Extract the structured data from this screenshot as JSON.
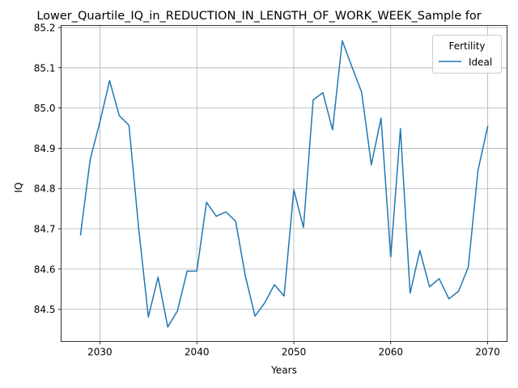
{
  "chart_data": {
    "type": "line",
    "title": "Lower_Quartile_IQ_in_REDUCTION_IN_LENGTH_OF_WORK_WEEK_Sample for",
    "xlabel": "Years",
    "ylabel": "IQ",
    "xlim": [
      2026,
      2072
    ],
    "ylim": [
      84.42,
      85.205
    ],
    "xticks": [
      2030,
      2040,
      2050,
      2060,
      2070
    ],
    "yticks": [
      84.5,
      84.6,
      84.7,
      84.8,
      84.9,
      85.0,
      85.1,
      85.2
    ],
    "ytick_labels": [
      "84.5",
      "84.6",
      "84.7",
      "84.8",
      "84.9",
      "85.0",
      "85.1",
      "85.2"
    ],
    "grid": true,
    "legend": {
      "title": "Fertility",
      "position": "top-right"
    },
    "series": [
      {
        "name": "Ideal",
        "color": "#1f77b4",
        "x": [
          2028,
          2029,
          2030,
          2031,
          2032,
          2033,
          2034,
          2035,
          2036,
          2037,
          2038,
          2039,
          2040,
          2041,
          2042,
          2043,
          2044,
          2045,
          2046,
          2047,
          2048,
          2049,
          2050,
          2051,
          2052,
          2053,
          2054,
          2055,
          2056,
          2057,
          2058,
          2059,
          2060,
          2061,
          2062,
          2063,
          2064,
          2065,
          2066,
          2067,
          2068,
          2069,
          2070
        ],
        "y": [
          84.685,
          84.872,
          84.965,
          85.068,
          84.981,
          84.957,
          84.701,
          84.481,
          84.58,
          84.456,
          84.496,
          84.595,
          84.595,
          84.766,
          84.731,
          84.742,
          84.719,
          84.583,
          84.483,
          84.516,
          84.561,
          84.533,
          84.797,
          84.703,
          85.02,
          85.038,
          84.946,
          85.167,
          85.102,
          85.039,
          84.859,
          84.975,
          84.63,
          84.949,
          84.54,
          84.646,
          84.556,
          84.576,
          84.526,
          84.545,
          84.605,
          84.845,
          84.954
        ]
      }
    ]
  }
}
